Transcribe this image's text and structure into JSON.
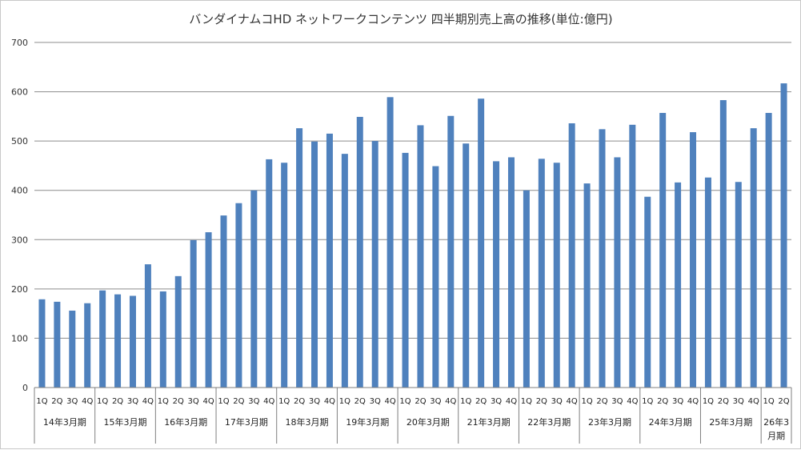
{
  "chart_data": {
    "type": "bar",
    "title": "バンダイナムコHD ネットワークコンテンツ 四半期別売上高の推移(単位:億円)",
    "xlabel": "",
    "ylabel": "",
    "ylim": [
      0,
      700
    ],
    "yticks": [
      0,
      100,
      200,
      300,
      400,
      500,
      600,
      700
    ],
    "grid": true,
    "bar_color": "#4f81bd",
    "groups": [
      {
        "label": "14年3月期",
        "quarters": [
          "1Q",
          "2Q",
          "3Q",
          "4Q"
        ],
        "values": [
          179,
          174,
          156,
          171
        ]
      },
      {
        "label": "15年3月期",
        "quarters": [
          "1Q",
          "2Q",
          "3Q",
          "4Q"
        ],
        "values": [
          197,
          189,
          186,
          250
        ]
      },
      {
        "label": "16年3月期",
        "quarters": [
          "1Q",
          "2Q",
          "3Q",
          "4Q"
        ],
        "values": [
          195,
          226,
          299,
          315
        ]
      },
      {
        "label": "17年3月期",
        "quarters": [
          "1Q",
          "2Q",
          "3Q",
          "4Q"
        ],
        "values": [
          349,
          374,
          400,
          463
        ]
      },
      {
        "label": "18年3月期",
        "quarters": [
          "1Q",
          "2Q",
          "3Q",
          "4Q"
        ],
        "values": [
          456,
          526,
          499,
          515
        ]
      },
      {
        "label": "19年3月期",
        "quarters": [
          "1Q",
          "2Q",
          "3Q",
          "4Q"
        ],
        "values": [
          474,
          549,
          500,
          589
        ]
      },
      {
        "label": "20年3月期",
        "quarters": [
          "1Q",
          "2Q",
          "3Q",
          "4Q"
        ],
        "values": [
          476,
          532,
          449,
          551
        ]
      },
      {
        "label": "21年3月期",
        "quarters": [
          "1Q",
          "2Q",
          "3Q",
          "4Q"
        ],
        "values": [
          495,
          586,
          459,
          467
        ]
      },
      {
        "label": "22年3月期",
        "quarters": [
          "1Q",
          "2Q",
          "3Q",
          "4Q"
        ],
        "values": [
          400,
          464,
          456,
          536
        ]
      },
      {
        "label": "23年3月期",
        "quarters": [
          "1Q",
          "2Q",
          "3Q",
          "4Q"
        ],
        "values": [
          414,
          524,
          467,
          533
        ]
      },
      {
        "label": "24年3月期",
        "quarters": [
          "1Q",
          "2Q",
          "3Q",
          "4Q"
        ],
        "values": [
          387,
          557,
          416,
          518
        ]
      },
      {
        "label": "25年3月期",
        "quarters": [
          "1Q",
          "2Q",
          "3Q",
          "4Q"
        ],
        "values": [
          426,
          583,
          417,
          526
        ]
      },
      {
        "label": "26年3\n月期",
        "quarters": [
          "1Q",
          "2Q"
        ],
        "values": [
          557,
          617
        ]
      }
    ]
  }
}
